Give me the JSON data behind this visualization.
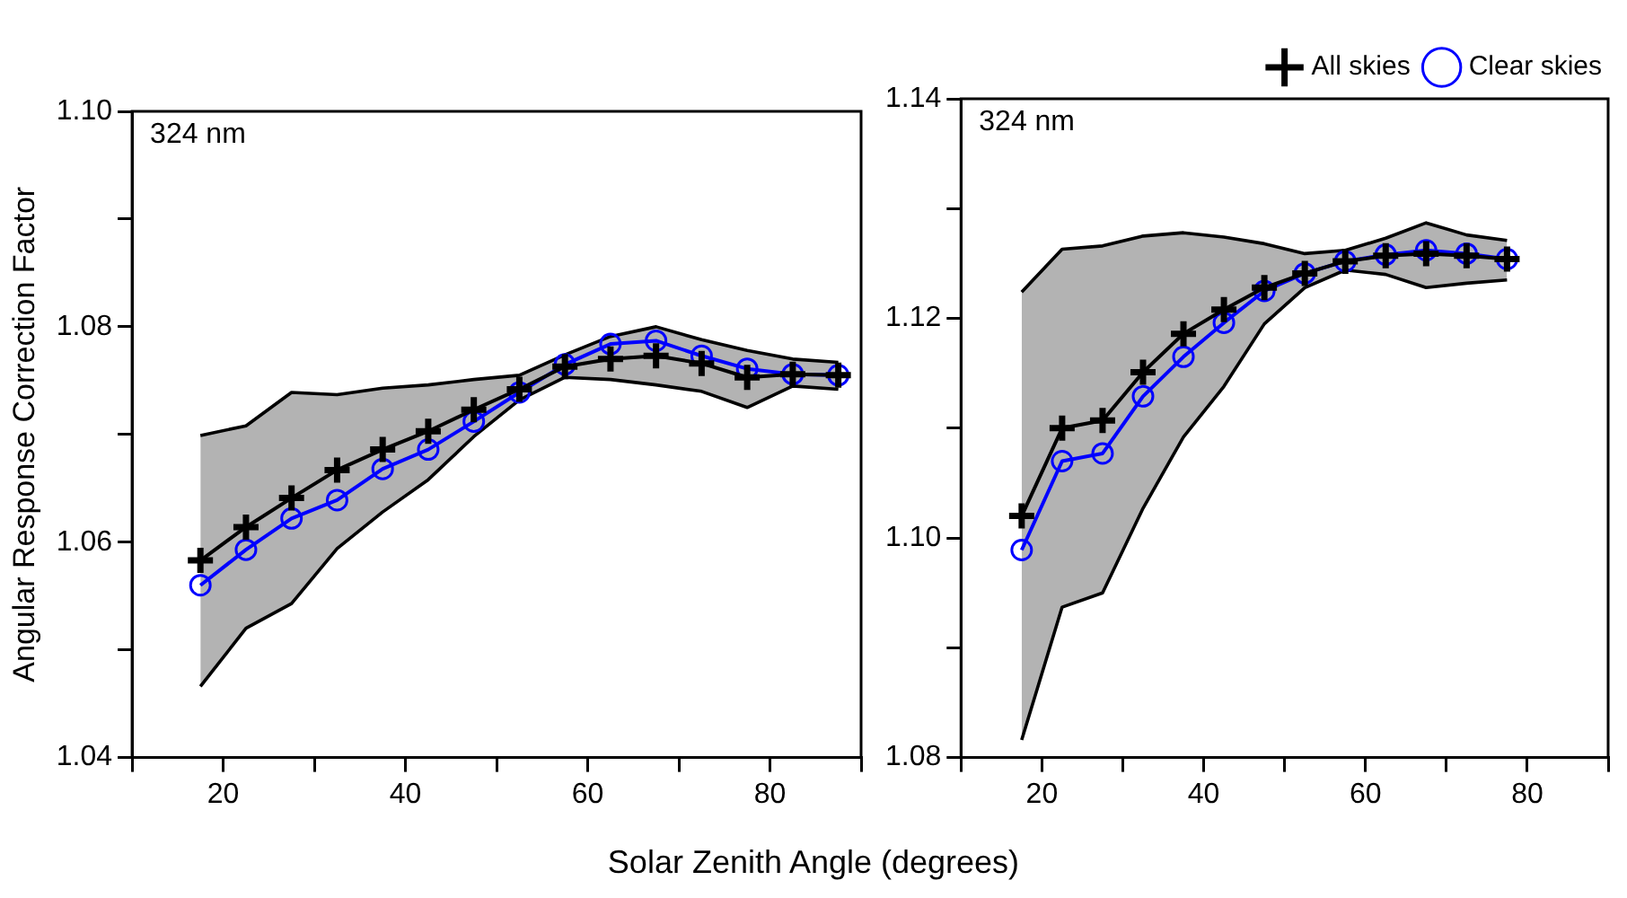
{
  "chart_data": [
    {
      "type": "line",
      "subtitle": "324 nm",
      "ylabel": "Angular Response Correction Factor",
      "xlabel": "Solar Zenith Angle (degrees)",
      "x": [
        17.5,
        22.5,
        27.5,
        32.5,
        37.5,
        42.5,
        47.5,
        52.5,
        57.5,
        62.5,
        67.5,
        72.5,
        77.5,
        82.5,
        87.5
      ],
      "series": [
        {
          "color": "#000000",
          "marker": "cross",
          "values": [
            1.0583,
            1.0614,
            1.0641,
            1.0667,
            1.0686,
            1.0703,
            1.0723,
            1.0742,
            1.0763,
            1.077,
            1.0773,
            1.0766,
            1.0753,
            1.0756,
            1.0755
          ],
          "lower": [
            1.0466,
            1.052,
            1.0543,
            1.0594,
            1.0628,
            1.0658,
            1.0698,
            1.0732,
            1.0753,
            1.0751,
            1.0746,
            1.074,
            1.0725,
            1.0745,
            1.0742
          ],
          "upper": [
            1.0699,
            1.0708,
            1.0739,
            1.0737,
            1.0743,
            1.0746,
            1.0751,
            1.0755,
            1.0774,
            1.0791,
            1.08,
            1.0788,
            1.0778,
            1.077,
            1.0767
          ]
        },
        {
          "color": "#0000ff",
          "marker": "circle",
          "values": [
            1.056,
            1.0593,
            1.0622,
            1.0639,
            1.0668,
            1.0686,
            1.0712,
            1.0739,
            1.0765,
            1.0784,
            1.0787,
            1.0773,
            1.0761,
            1.0756,
            1.0755
          ]
        },
        {
          "color": "#000000",
          "marker": "none",
          "values": [
            1.0699,
            1.0708,
            1.0739,
            1.0737,
            1.0743,
            1.0746,
            1.0751,
            1.0755,
            1.0774,
            1.0791,
            1.08,
            1.0788,
            1.0778,
            1.077,
            1.0767
          ]
        },
        {
          "color": "#000000",
          "marker": "none",
          "values": [
            1.0466,
            1.052,
            1.0543,
            1.0594,
            1.0628,
            1.0658,
            1.0698,
            1.0732,
            1.0753,
            1.0751,
            1.0746,
            1.074,
            1.0725,
            1.0745,
            1.0742
          ]
        }
      ],
      "xlim": [
        10,
        90
      ],
      "xticks": [
        {
          "value": 10,
          "label": null
        },
        20,
        {
          "value": 30,
          "label": null
        },
        40,
        {
          "value": 50,
          "label": null
        },
        60,
        {
          "value": 70,
          "label": null
        },
        80,
        {
          "value": 90,
          "label": null
        }
      ],
      "ylim": [
        1.04,
        1.1
      ],
      "yticks": [
        1.04,
        {
          "value": 1.05,
          "label": null
        },
        1.06,
        {
          "value": 1.07,
          "label": null
        },
        1.08,
        {
          "value": 1.09,
          "label": null
        },
        {
          "value": 1.1,
          "label": "1.10"
        }
      ]
    },
    {
      "type": "line",
      "subtitle": "324 nm",
      "x": [
        17.5,
        22.5,
        27.5,
        32.5,
        37.5,
        42.5,
        47.5,
        52.5,
        57.5,
        62.5,
        67.5,
        72.5,
        77.5
      ],
      "series": [
        {
          "name": "All skies",
          "color": "#000000",
          "marker": "cross",
          "values": [
            1.102,
            1.11,
            1.1107,
            1.1151,
            1.1186,
            1.1208,
            1.1228,
            1.1241,
            1.1252,
            1.1257,
            1.1259,
            1.1257,
            1.1254
          ],
          "lower": [
            1.0816,
            1.0937,
            1.095,
            1.1027,
            1.1092,
            1.1138,
            1.1195,
            1.1228,
            1.1244,
            1.124,
            1.1228,
            1.1232,
            1.1235
          ],
          "upper": [
            1.1224,
            1.1263,
            1.1266,
            1.1275,
            1.1278,
            1.1274,
            1.1268,
            1.1259,
            1.1262,
            1.1273,
            1.1287,
            1.1276,
            1.1271
          ]
        },
        {
          "name": "Clear skies",
          "color": "#0000ff",
          "marker": "circle",
          "values": [
            1.0989,
            1.107,
            1.1077,
            1.1129,
            1.1165,
            1.1196,
            1.1225,
            1.1241,
            1.1252,
            1.1258,
            1.1262,
            1.1259,
            1.1254
          ]
        },
        {
          "color": "#000000",
          "marker": "none",
          "values": [
            1.1224,
            1.1263,
            1.1266,
            1.1275,
            1.1278,
            1.1274,
            1.1268,
            1.1259,
            1.1262,
            1.1273,
            1.1287,
            1.1276,
            1.1271
          ]
        },
        {
          "color": "#000000",
          "marker": "none",
          "values": [
            1.0816,
            1.0937,
            1.095,
            1.1027,
            1.1092,
            1.1138,
            1.1195,
            1.1228,
            1.1244,
            1.124,
            1.1228,
            1.1232,
            1.1235
          ]
        }
      ],
      "xlim": [
        10,
        90
      ],
      "xticks": [
        {
          "value": 10,
          "label": null
        },
        20,
        {
          "value": 30,
          "label": null
        },
        40,
        {
          "value": 50,
          "label": null
        },
        60,
        {
          "value": 70,
          "label": null
        },
        80,
        {
          "value": 90,
          "label": null
        }
      ],
      "ylim": [
        1.08,
        1.14
      ],
      "yticks": [
        1.08,
        {
          "value": 1.09,
          "label": null
        },
        {
          "value": 1.1,
          "label": "1.10"
        },
        {
          "value": 1.11,
          "label": null
        },
        1.12,
        {
          "value": 1.13,
          "label": null
        },
        1.14
      ],
      "legend": "top right"
    }
  ]
}
